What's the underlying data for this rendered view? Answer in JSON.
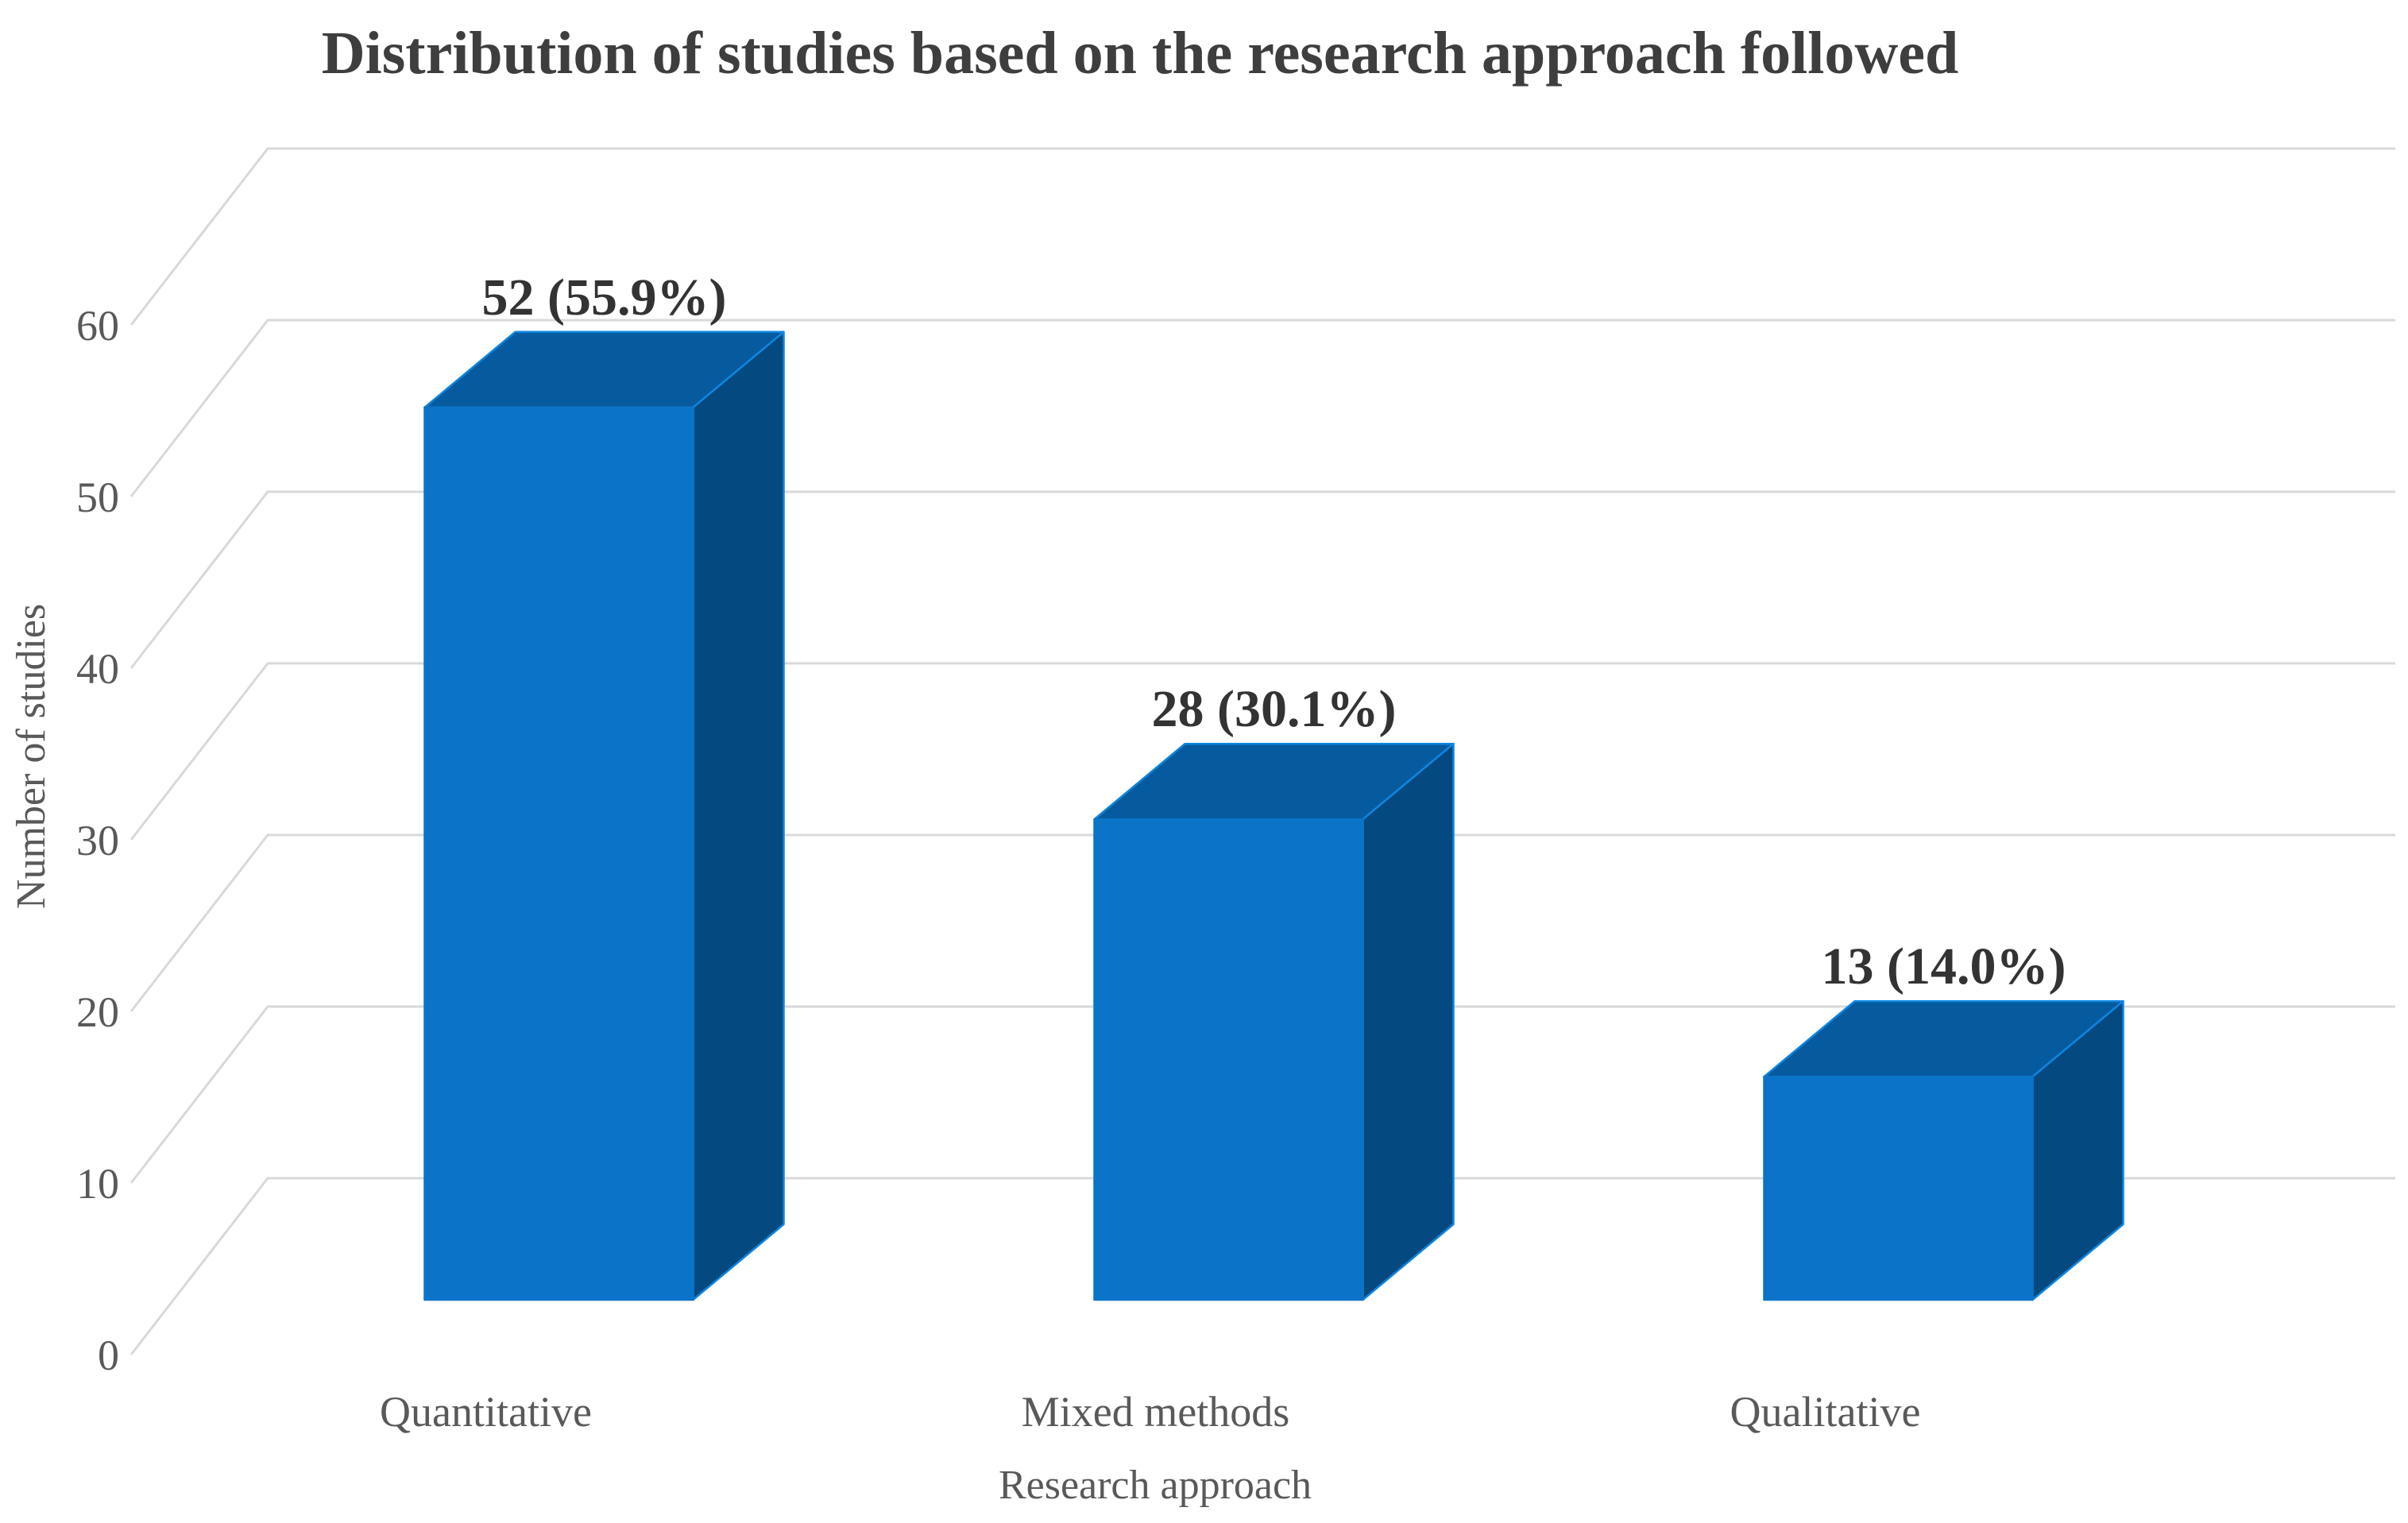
{
  "title": "Distribution of studies based on the research approach followed",
  "chart_data": {
    "type": "bar",
    "variant": "3d-column",
    "title": "Distribution of studies based on the research approach followed",
    "categories": [
      "Quantitative",
      "Mixed methods",
      "Qualitative"
    ],
    "values": [
      52,
      28,
      13
    ],
    "data_labels": [
      "52 (55.9%)",
      "28 (30.1%)",
      "13 (14.0%)"
    ],
    "series": [
      {
        "name": "Number of studies",
        "values": [
          52,
          28,
          13
        ],
        "percentages": [
          55.9,
          30.1,
          14.0
        ]
      }
    ],
    "xlabel": "Research approach",
    "ylabel": "Number of studies",
    "yticks": [
      0,
      10,
      20,
      30,
      40,
      50,
      60
    ],
    "ylim": [
      0,
      60
    ],
    "grid": true,
    "legend": false,
    "colors": {
      "bar_front": "#0B74C8",
      "bar_top": "#065A9E",
      "bar_side": "#04497F",
      "bar_edge": "#0D86E0",
      "gridline": "#D9D9D9",
      "title_text": "#3E3E3E",
      "value_label_text": "#333333",
      "axis_text": "#595959",
      "background": "#FFFFFF"
    }
  }
}
